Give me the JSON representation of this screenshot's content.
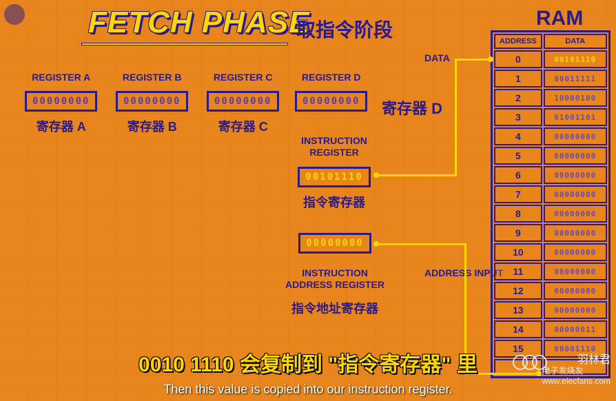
{
  "title": {
    "en": "FETCH PHASE",
    "cn": "取指令阶段"
  },
  "ram_title": "RAM",
  "labels": {
    "data": "DATA",
    "address_input": "ADDRESS INPUT"
  },
  "registers": {
    "a": {
      "en": "REGISTER A",
      "cn": "寄存器 A",
      "value": "00000000",
      "hl": false
    },
    "b": {
      "en": "REGISTER B",
      "cn": "寄存器 B",
      "value": "00000000",
      "hl": false
    },
    "c": {
      "en": "REGISTER C",
      "cn": "寄存器 C",
      "value": "00000000",
      "hl": false
    },
    "d": {
      "en": "REGISTER D",
      "cn": "寄存器 D",
      "value": "00000000",
      "hl": false
    },
    "ir": {
      "en": "INSTRUCTION REGISTER",
      "cn": "指令寄存器",
      "value": "00101110",
      "hl": true
    },
    "iar": {
      "en": "INSTRUCTION ADDRESS REGISTER",
      "cn": "指令地址寄存器",
      "value": "00000000",
      "hl": true
    }
  },
  "ram": {
    "headers": {
      "addr": "ADDRESS",
      "data": "DATA"
    },
    "rows": [
      {
        "addr": "0",
        "data": "00101110",
        "hl": true
      },
      {
        "addr": "1",
        "data": "00011111",
        "hl": false
      },
      {
        "addr": "2",
        "data": "10000100",
        "hl": false
      },
      {
        "addr": "3",
        "data": "01001101",
        "hl": false
      },
      {
        "addr": "4",
        "data": "00000000",
        "hl": false
      },
      {
        "addr": "5",
        "data": "00000000",
        "hl": false
      },
      {
        "addr": "6",
        "data": "00000000",
        "hl": false
      },
      {
        "addr": "7",
        "data": "00000000",
        "hl": false
      },
      {
        "addr": "8",
        "data": "00000000",
        "hl": false
      },
      {
        "addr": "9",
        "data": "00000000",
        "hl": false
      },
      {
        "addr": "10",
        "data": "00000000",
        "hl": false
      },
      {
        "addr": "11",
        "data": "00000000",
        "hl": false
      },
      {
        "addr": "12",
        "data": "00000000",
        "hl": false
      },
      {
        "addr": "13",
        "data": "00000000",
        "hl": false
      },
      {
        "addr": "14",
        "data": "00000011",
        "hl": false
      },
      {
        "addr": "15",
        "data": "00001110",
        "hl": false
      }
    ],
    "more": "..."
  },
  "subtitle": {
    "cn": "0010 1110 会复制到 \"指令寄存器\" 里",
    "en": "Then this value is copied into our instruction register."
  },
  "watermark": {
    "cn": "羽林君",
    "en": "电子发烧友",
    "url": "www.elecfans.com"
  },
  "colors": {
    "bg": "#e8861d",
    "stroke": "#2a1a8a",
    "highlight": "#ffd700",
    "dim": "#6a4ab8"
  }
}
